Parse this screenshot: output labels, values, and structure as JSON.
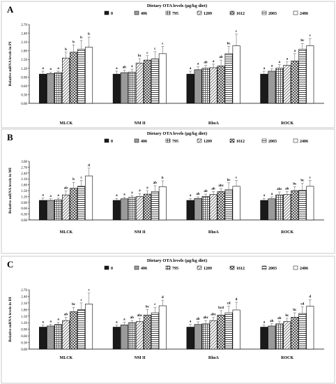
{
  "legend_title": "Dietary OTA levels (μg/kg diet)",
  "legend_labels": [
    "0",
    "406",
    "795",
    "1209",
    "1612",
    "2003",
    "2406"
  ],
  "fills": [
    "#1a1a1a",
    "#9a9a9a",
    "url(#p-grid)",
    "url(#p-diag)",
    "url(#p-check)",
    "url(#p-horiz)",
    "#ffffff"
  ],
  "chart_data": [
    {
      "type": "bar",
      "panel": "A",
      "ylabel": "Relative mRNA levels in PI",
      "ylim": [
        0,
        2.7
      ],
      "ytick_labels": [
        "0.00",
        "0.30",
        "0.60",
        "0.90",
        "1.20",
        "1.50",
        "1.80",
        "2.10",
        "2.40",
        "2.70"
      ],
      "categories": [
        "MLCK",
        "NM II",
        "RhoA",
        "ROCK"
      ],
      "series": [
        {
          "name": "0",
          "values": [
            1.0,
            1.0,
            1.0,
            1.0
          ],
          "errors": [
            0.1,
            0.1,
            0.1,
            0.1
          ],
          "letters": [
            "a",
            "a",
            "a",
            "a"
          ]
        },
        {
          "name": "406",
          "values": [
            1.02,
            1.05,
            1.15,
            1.1
          ],
          "errors": [
            0.05,
            0.08,
            0.1,
            0.08
          ],
          "letters": [
            "a",
            "ab",
            "a",
            "a"
          ]
        },
        {
          "name": "795",
          "values": [
            1.05,
            1.07,
            1.2,
            1.2
          ],
          "errors": [
            0.05,
            0.1,
            0.1,
            0.12
          ],
          "letters": [
            "a",
            "a",
            "ab",
            "a"
          ]
        },
        {
          "name": "1209",
          "values": [
            1.55,
            1.38,
            1.22,
            1.3
          ],
          "errors": [
            0.2,
            0.15,
            0.12,
            0.12
          ],
          "letters": [
            "b",
            "bc",
            "a",
            "a"
          ]
        },
        {
          "name": "1612",
          "values": [
            1.75,
            1.48,
            1.28,
            1.45
          ],
          "errors": [
            0.25,
            0.15,
            0.2,
            0.25
          ],
          "letters": [
            "b",
            "c",
            "ab",
            "a"
          ]
        },
        {
          "name": "2003",
          "values": [
            1.85,
            1.52,
            1.7,
            1.85
          ],
          "errors": [
            0.3,
            0.25,
            0.25,
            0.2
          ],
          "letters": [
            "b",
            "c",
            "bc",
            "bc"
          ]
        },
        {
          "name": "2406",
          "values": [
            1.92,
            1.7,
            1.97,
            1.97
          ],
          "errors": [
            0.35,
            0.25,
            0.4,
            0.25
          ],
          "letters": [
            "b",
            "c",
            "c",
            "c"
          ]
        }
      ]
    },
    {
      "type": "bar",
      "panel": "B",
      "ylabel": "Relative mRNA levels in MI",
      "ylim": [
        0,
        3.0
      ],
      "ytick_labels": [
        "0.00",
        "0.30",
        "0.60",
        "0.90",
        "1.20",
        "1.50",
        "1.80",
        "2.10",
        "2.40",
        "2.70",
        "3.00"
      ],
      "categories": [
        "MLCK",
        "NM II",
        "RhoA",
        "ROCK"
      ],
      "series": [
        {
          "name": "0",
          "values": [
            1.0,
            1.0,
            1.0,
            1.0
          ],
          "errors": [
            0.12,
            0.1,
            0.1,
            0.1
          ],
          "letters": [
            "a",
            "a",
            "a",
            "a"
          ]
        },
        {
          "name": "406",
          "values": [
            1.0,
            1.08,
            1.1,
            1.08
          ],
          "errors": [
            0.08,
            0.08,
            0.08,
            0.1
          ],
          "letters": [
            "a",
            "a",
            "ab",
            "a"
          ]
        },
        {
          "name": "795",
          "values": [
            1.03,
            1.15,
            1.2,
            1.28
          ],
          "errors": [
            0.08,
            0.1,
            0.12,
            0.15
          ],
          "letters": [
            "a",
            "a",
            "ab",
            "abc"
          ]
        },
        {
          "name": "1209",
          "values": [
            1.28,
            1.2,
            1.3,
            1.3
          ],
          "errors": [
            0.2,
            0.15,
            0.15,
            0.15
          ],
          "letters": [
            "ab",
            "a",
            "ab",
            "ab"
          ]
        },
        {
          "name": "1612",
          "values": [
            1.62,
            1.32,
            1.45,
            1.5
          ],
          "errors": [
            0.3,
            0.18,
            0.15,
            0.2
          ],
          "letters": [
            "b",
            "a",
            "abc",
            "bc"
          ]
        },
        {
          "name": "2003",
          "values": [
            1.72,
            1.45,
            1.55,
            1.52
          ],
          "errors": [
            0.3,
            0.3,
            0.35,
            0.35
          ],
          "letters": [
            "c",
            "ab",
            "bc",
            "bc"
          ]
        },
        {
          "name": "2406",
          "values": [
            2.25,
            1.7,
            1.72,
            1.72
          ],
          "errors": [
            0.4,
            0.3,
            0.3,
            0.3
          ],
          "letters": [
            "d",
            "b",
            "c",
            "c"
          ]
        }
      ]
    },
    {
      "type": "bar",
      "panel": "C",
      "ylabel": "Relative mRNA levels in DI",
      "ylim": [
        0,
        2.7
      ],
      "ytick_labels": [
        "0.00",
        "0.30",
        "0.60",
        "0.90",
        "1.20",
        "1.50",
        "1.80",
        "2.10",
        "2.40",
        "2.70"
      ],
      "categories": [
        "MLCK",
        "NM II",
        "RhoA",
        "ROCK"
      ],
      "series": [
        {
          "name": "0",
          "values": [
            1.0,
            1.0,
            1.0,
            1.0
          ],
          "errors": [
            0.1,
            0.1,
            0.12,
            0.1
          ],
          "letters": [
            "a",
            "a",
            "a",
            "a"
          ]
        },
        {
          "name": "406",
          "values": [
            1.05,
            1.1,
            1.12,
            1.05
          ],
          "errors": [
            0.08,
            0.12,
            0.12,
            0.1
          ],
          "letters": [
            "a",
            "a",
            "ab",
            "ab"
          ]
        },
        {
          "name": "795",
          "values": [
            1.12,
            1.2,
            1.15,
            1.15
          ],
          "errors": [
            0.1,
            0.1,
            0.15,
            0.12
          ],
          "letters": [
            "a",
            "ab",
            "abc",
            "ab"
          ]
        },
        {
          "name": "1209",
          "values": [
            1.3,
            1.25,
            1.3,
            1.25
          ],
          "errors": [
            0.15,
            0.15,
            0.15,
            0.15
          ],
          "letters": [
            "ab",
            "abc",
            "abc",
            "bc"
          ]
        },
        {
          "name": "1612",
          "values": [
            1.7,
            1.55,
            1.55,
            1.45
          ],
          "errors": [
            0.2,
            0.25,
            0.2,
            0.2
          ],
          "letters": [
            "bc",
            "bc",
            "bcd",
            "bc"
          ]
        },
        {
          "name": "2003",
          "values": [
            1.8,
            1.65,
            1.65,
            1.62
          ],
          "errors": [
            0.3,
            0.25,
            0.3,
            0.3
          ],
          "letters": [
            "c",
            "c",
            "cd",
            "cd"
          ]
        },
        {
          "name": "2406",
          "values": [
            2.05,
            1.97,
            1.78,
            1.95
          ],
          "errors": [
            0.5,
            0.25,
            0.35,
            0.3
          ],
          "letters": [
            "c",
            "d",
            "d",
            "d"
          ]
        }
      ]
    }
  ]
}
